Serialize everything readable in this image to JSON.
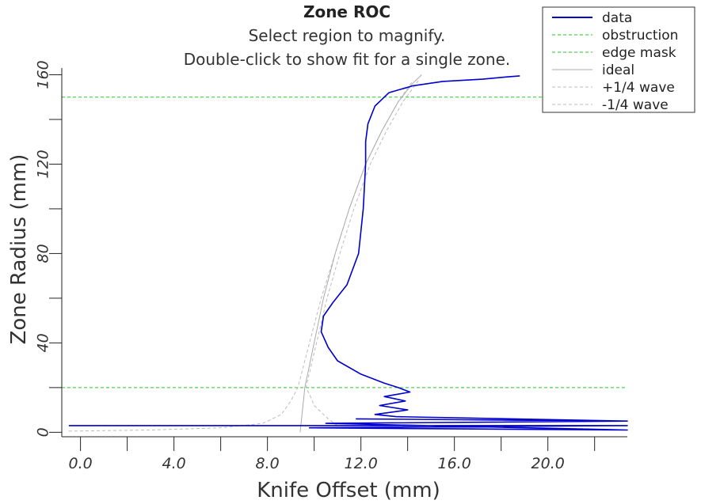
{
  "chart_data": {
    "type": "line",
    "title": "Zone ROC",
    "subtitle_lines": [
      "Select region to magnify.",
      "Double-click to show fit for a single zone."
    ],
    "xlabel": "Knife Offset (mm)",
    "ylabel": "Zone Radius (mm)",
    "xlim": [
      -0.8,
      23.4
    ],
    "ylim": [
      -2,
      163
    ],
    "x_ticks": [
      0,
      4,
      8,
      12,
      16,
      20
    ],
    "x_tick_labels": [
      "0.0",
      "4.0",
      "8.0",
      "12.0",
      "16.0",
      "20.0"
    ],
    "y_ticks": [
      0,
      40,
      80,
      120,
      160
    ],
    "y_tick_labels": [
      "0",
      "40",
      "80",
      "120",
      "160"
    ],
    "legend_position": "top-right",
    "colors": {
      "data": "#0000cc",
      "obstruction": "#22cc22",
      "edge_mask": "#22cc22",
      "ideal": "#aaaaaa",
      "quarter_wave": "#bbbbbb"
    },
    "reference_lines": [
      {
        "name": "obstruction",
        "orientation": "horizontal",
        "y": 20
      },
      {
        "name": "edge mask",
        "orientation": "horizontal",
        "y": 150
      }
    ],
    "series": [
      {
        "name": "data",
        "style": "solid",
        "x": [
          -0.5,
          23.4,
          9.8,
          23.4,
          10.5,
          23.4,
          11.8,
          23.4,
          13.5,
          12.6,
          14.0,
          12.8,
          13.9,
          13.0,
          14.1,
          13.6,
          13.0,
          12.0,
          11.0,
          10.6,
          10.3,
          10.4,
          10.8,
          11.4,
          11.9,
          12.1,
          12.2,
          12.2,
          12.3,
          12.6,
          13.2,
          14.2,
          15.5,
          17.2,
          18.2,
          18.8
        ],
        "y": [
          3,
          3,
          2,
          1,
          4,
          5,
          6,
          5,
          7,
          8,
          10,
          12,
          14,
          16,
          18,
          20,
          22,
          26,
          32,
          38,
          45,
          52,
          58,
          66,
          80,
          100,
          120,
          130,
          138,
          146,
          152,
          155,
          157,
          158,
          159,
          159.5
        ]
      },
      {
        "name": "ideal",
        "style": "solid",
        "x": [
          9.4,
          9.45,
          9.5,
          9.55,
          9.6,
          10.0,
          10.4,
          10.9,
          11.5,
          12.2,
          12.9,
          13.6,
          14.2,
          14.6
        ],
        "y": [
          0,
          5,
          10,
          15,
          20,
          40,
          60,
          80,
          100,
          120,
          135,
          148,
          156,
          160
        ]
      },
      {
        "name": "+1/4 wave",
        "style": "dashed",
        "x": [
          -0.5,
          3.0,
          6.0,
          7.8,
          8.6,
          9.0,
          9.3,
          9.8,
          10.3,
          10.9,
          11.5,
          12.2,
          12.9,
          13.6,
          14.2
        ],
        "y": [
          0.5,
          1,
          2,
          4,
          8,
          14,
          20,
          40,
          60,
          80,
          100,
          120,
          135,
          148,
          157
        ]
      },
      {
        "name": "-1/4 wave",
        "style": "dashed",
        "x": [
          11.0,
          10.6,
          10.0,
          9.8,
          9.65,
          10.1,
          10.55,
          11.1,
          11.7,
          12.4,
          13.1,
          13.8,
          14.5
        ],
        "y": [
          3,
          6,
          12,
          17,
          20,
          40,
          60,
          80,
          100,
          120,
          135,
          148,
          158
        ]
      },
      {
        "name": "obstruction",
        "style": "dashed"
      },
      {
        "name": "edge mask",
        "style": "dashed"
      }
    ]
  }
}
